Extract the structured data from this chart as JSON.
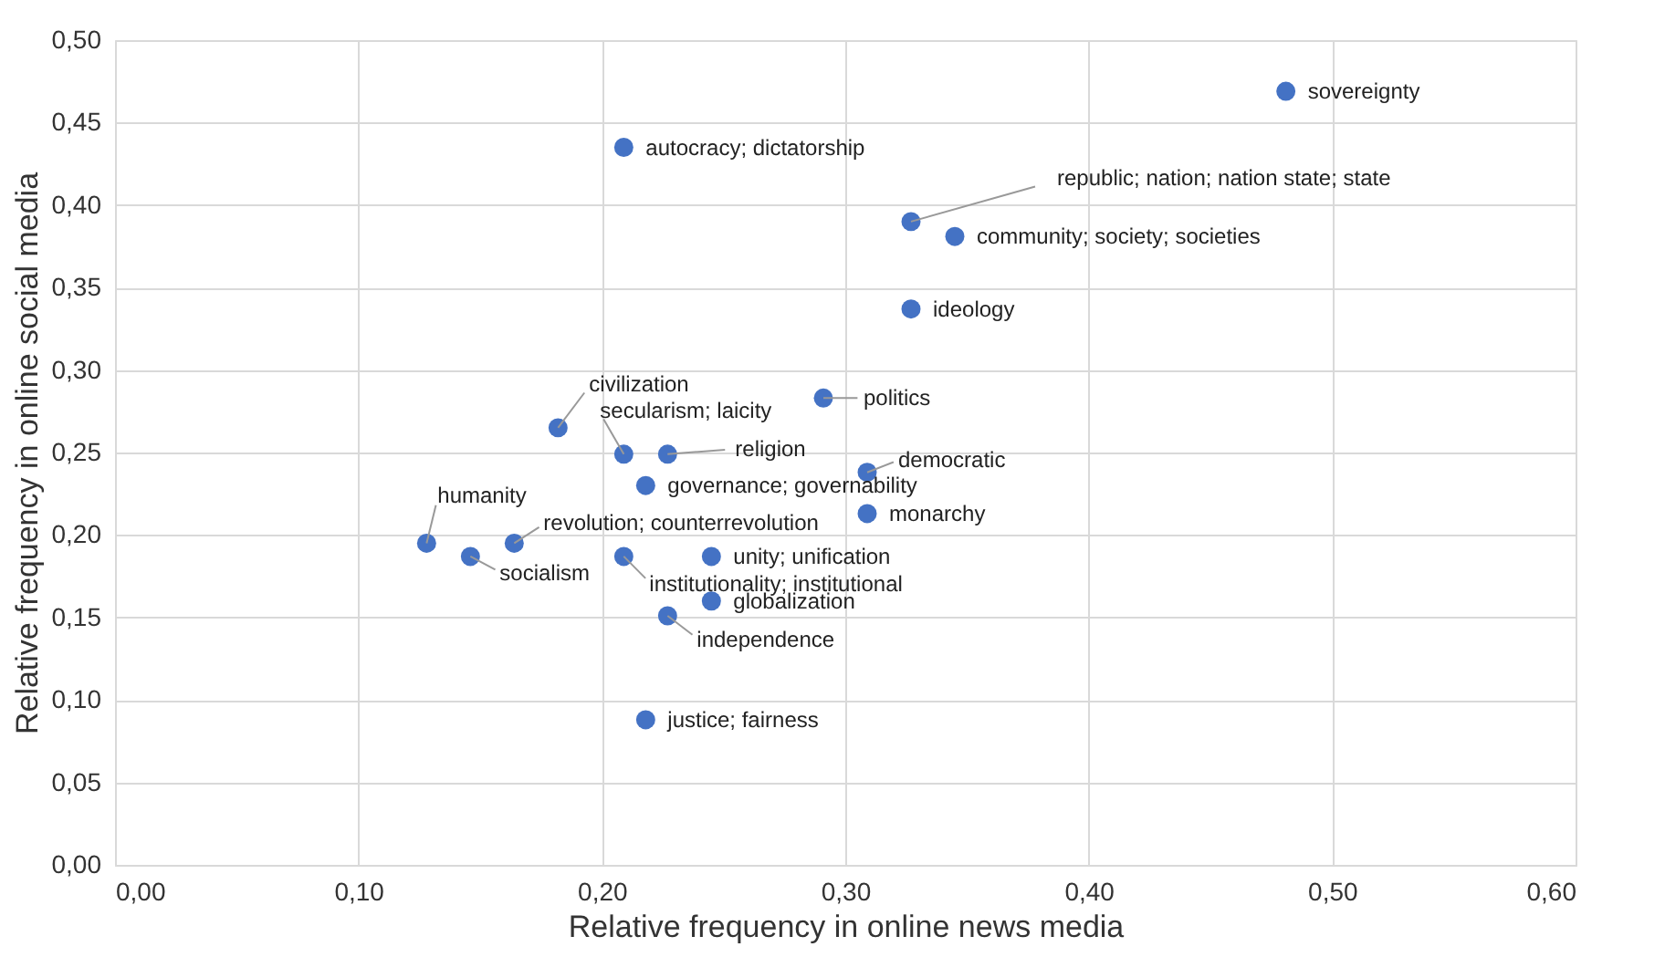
{
  "chart_data": {
    "type": "scatter",
    "xlabel": "Relative frequency in online news media",
    "ylabel": "Relative frequency in online social media",
    "series": [
      {
        "color": "#4472c4",
        "x": [
          0.481,
          0.209,
          0.327,
          0.345,
          0.327,
          0.291,
          0.182,
          0.209,
          0.227,
          0.309,
          0.218,
          0.309,
          0.128,
          0.146,
          0.164,
          0.209,
          0.245,
          0.245,
          0.227,
          0.218
        ],
        "values": [
          0.469,
          0.435,
          0.39,
          0.381,
          0.337,
          0.283,
          0.265,
          0.249,
          0.249,
          0.238,
          0.23,
          0.213,
          0.195,
          0.187,
          0.195,
          0.187,
          0.187,
          0.16,
          0.151,
          0.088
        ]
      }
    ],
    "annotations": [
      {
        "text": "sovereignty",
        "x": 0.481,
        "y": 0.469
      },
      {
        "text": "autocracy; dictatorship",
        "x": 0.209,
        "y": 0.435
      },
      {
        "text": "republic; nation; nation state; state",
        "x": 0.327,
        "y": 0.39
      },
      {
        "text": "community; society; societies",
        "x": 0.345,
        "y": 0.381
      },
      {
        "text": "ideology",
        "x": 0.327,
        "y": 0.337
      },
      {
        "text": "politics",
        "x": 0.291,
        "y": 0.283
      },
      {
        "text": "civilization",
        "x": 0.182,
        "y": 0.265
      },
      {
        "text": "secularism; laicity",
        "x": 0.209,
        "y": 0.249
      },
      {
        "text": "religion",
        "x": 0.227,
        "y": 0.249
      },
      {
        "text": "democratic",
        "x": 0.309,
        "y": 0.238
      },
      {
        "text": "governance; governability",
        "x": 0.218,
        "y": 0.23
      },
      {
        "text": "monarchy",
        "x": 0.309,
        "y": 0.213
      },
      {
        "text": "humanity",
        "x": 0.128,
        "y": 0.195
      },
      {
        "text": "socialism",
        "x": 0.146,
        "y": 0.187
      },
      {
        "text": "revolution; counterrevolution",
        "x": 0.164,
        "y": 0.195
      },
      {
        "text": "institutionality; institutional",
        "x": 0.209,
        "y": 0.187
      },
      {
        "text": "unity; unification",
        "x": 0.245,
        "y": 0.187
      },
      {
        "text": "globalization",
        "x": 0.245,
        "y": 0.16
      },
      {
        "text": "independence",
        "x": 0.227,
        "y": 0.151
      },
      {
        "text": "justice; fairness",
        "x": 0.218,
        "y": 0.088
      }
    ],
    "xlim": [
      0,
      0.6
    ],
    "xticks": [
      {
        "value": 0,
        "label": "0,00"
      },
      {
        "value": 0.1,
        "label": "0,10"
      },
      {
        "value": 0.2,
        "label": "0,20"
      },
      {
        "value": 0.3,
        "label": "0,30"
      },
      {
        "value": 0.4,
        "label": "0,40"
      },
      {
        "value": 0.5,
        "label": "0,50"
      },
      {
        "value": 0.6,
        "label": "0,60"
      }
    ],
    "ylim": [
      0,
      0.5
    ],
    "yticks": [
      {
        "value": 0,
        "label": "0,00"
      },
      {
        "value": 0.05,
        "label": "0,05"
      },
      {
        "value": 0.1,
        "label": "0,10"
      },
      {
        "value": 0.15,
        "label": "0,15"
      },
      {
        "value": 0.2,
        "label": "0,20"
      },
      {
        "value": 0.25,
        "label": "0,25"
      },
      {
        "value": 0.3,
        "label": "0,30"
      },
      {
        "value": 0.35,
        "label": "0,35"
      },
      {
        "value": 0.4,
        "label": "0,40"
      },
      {
        "value": 0.45,
        "label": "0,45"
      },
      {
        "value": 0.5,
        "label": "0,50"
      }
    ],
    "grid": true,
    "marker": "circle"
  }
}
